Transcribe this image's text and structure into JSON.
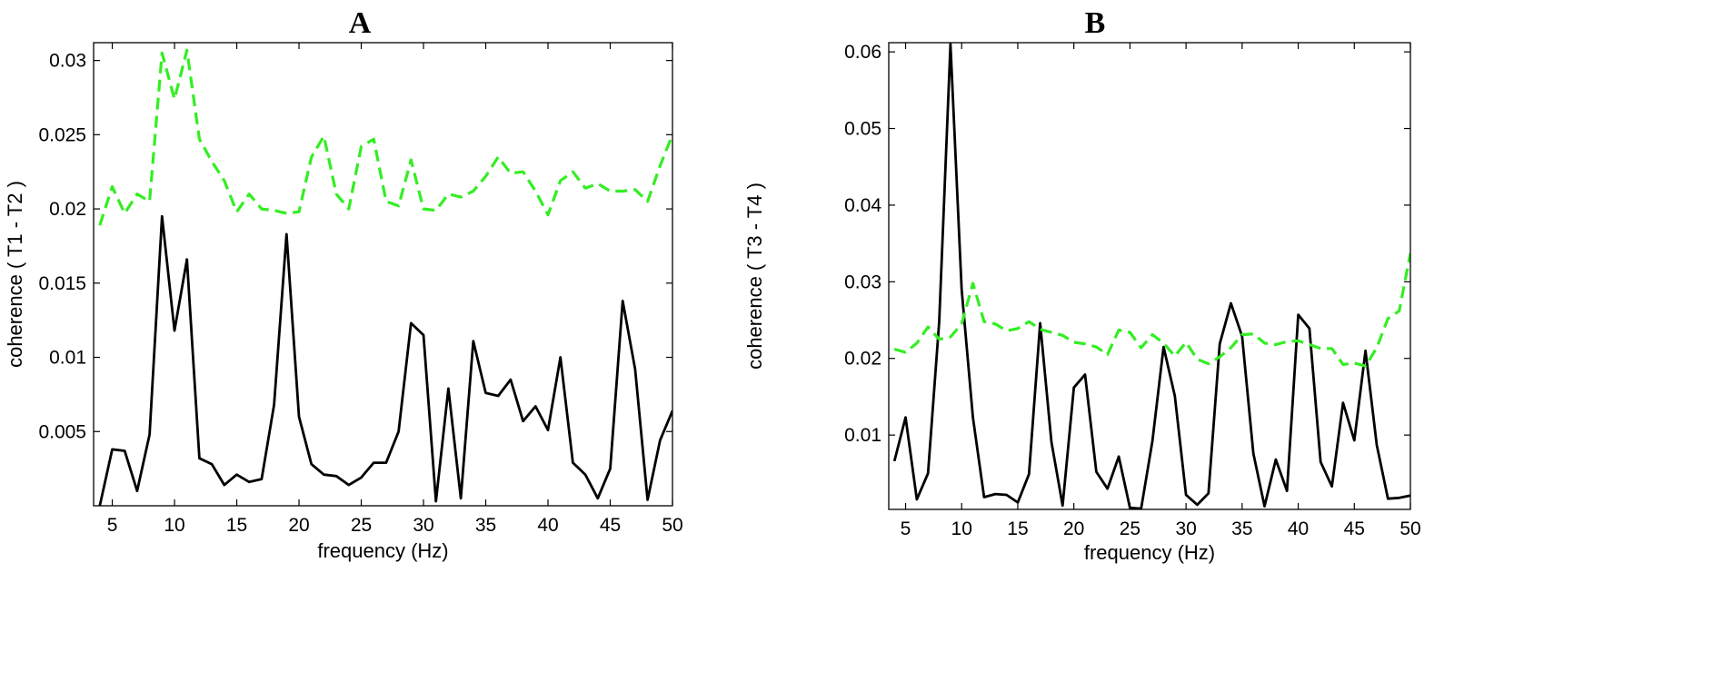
{
  "chart_data": [
    {
      "type": "line",
      "panel_label": "A",
      "xlabel": "frequency (Hz)",
      "ylabel": "coherence ( T1 - T2 )",
      "xlim": [
        3.5,
        50
      ],
      "ylim": [
        0,
        0.0312
      ],
      "xticks": [
        5,
        10,
        15,
        20,
        25,
        30,
        35,
        40,
        45,
        50
      ],
      "xtick_labels": [
        "5",
        "10",
        "15",
        "20",
        "25",
        "30",
        "35",
        "40",
        "45",
        "50"
      ],
      "yticks": [
        0.005,
        0.01,
        0.015,
        0.02,
        0.025,
        0.03
      ],
      "ytick_labels": [
        "0.005",
        "0.01",
        "0.015",
        "0.02",
        "0.025",
        "0.03"
      ],
      "grid": false,
      "x": [
        4,
        5,
        6,
        7,
        8,
        9,
        10,
        11,
        12,
        13,
        14,
        15,
        16,
        17,
        18,
        19,
        20,
        21,
        22,
        23,
        24,
        25,
        26,
        27,
        28,
        29,
        30,
        31,
        32,
        33,
        34,
        35,
        36,
        37,
        38,
        39,
        40,
        41,
        42,
        43,
        44,
        45,
        46,
        47,
        48,
        49,
        50
      ],
      "series": [
        {
          "color": "#000000",
          "style": "solid",
          "values": [
            0.0,
            0.0038,
            0.0037,
            0.001,
            0.0048,
            0.0195,
            0.0118,
            0.0166,
            0.0032,
            0.0028,
            0.0014,
            0.0021,
            0.0016,
            0.0018,
            0.0068,
            0.0183,
            0.006,
            0.0028,
            0.0021,
            0.002,
            0.0014,
            0.0019,
            0.0029,
            0.0029,
            0.005,
            0.0123,
            0.0115,
            0.0003,
            0.0079,
            0.0005,
            0.0111,
            0.0076,
            0.0074,
            0.0085,
            0.0057,
            0.0067,
            0.0051,
            0.01,
            0.0029,
            0.0021,
            0.0005,
            0.0025,
            0.0138,
            0.0092,
            0.0004,
            0.0044,
            0.0064
          ]
        },
        {
          "color": "#33ee22",
          "style": "dashed",
          "values": [
            0.0189,
            0.0215,
            0.0197,
            0.021,
            0.0205,
            0.0305,
            0.0274,
            0.0307,
            0.0247,
            0.0232,
            0.0219,
            0.0198,
            0.021,
            0.02,
            0.0199,
            0.0197,
            0.0198,
            0.0235,
            0.0249,
            0.021,
            0.02,
            0.0242,
            0.0247,
            0.0205,
            0.0202,
            0.0233,
            0.02,
            0.0199,
            0.021,
            0.0208,
            0.0212,
            0.0222,
            0.0235,
            0.0224,
            0.0225,
            0.0212,
            0.0196,
            0.0219,
            0.0225,
            0.0214,
            0.0217,
            0.0212,
            0.0212,
            0.0213,
            0.0205,
            0.0229,
            0.025
          ]
        }
      ]
    },
    {
      "type": "line",
      "panel_label": "B",
      "xlabel": "frequency (Hz)",
      "ylabel": "coherence ( T3 - T4 )",
      "xlim": [
        3.5,
        50
      ],
      "ylim": [
        0.0003,
        0.0612
      ],
      "xticks": [
        5,
        10,
        15,
        20,
        25,
        30,
        35,
        40,
        45,
        50
      ],
      "xtick_labels": [
        "5",
        "10",
        "15",
        "20",
        "25",
        "30",
        "35",
        "40",
        "45",
        "50"
      ],
      "yticks": [
        0.01,
        0.02,
        0.03,
        0.04,
        0.05,
        0.06
      ],
      "ytick_labels": [
        "0.01",
        "0.02",
        "0.03",
        "0.04",
        "0.05",
        "0.06"
      ],
      "grid": false,
      "x": [
        4,
        5,
        6,
        7,
        8,
        9,
        10,
        11,
        12,
        13,
        14,
        15,
        16,
        17,
        18,
        19,
        20,
        21,
        22,
        23,
        24,
        25,
        26,
        27,
        28,
        29,
        30,
        31,
        32,
        33,
        34,
        35,
        36,
        37,
        38,
        39,
        40,
        41,
        42,
        43,
        44,
        45,
        46,
        47,
        48,
        49,
        50
      ],
      "series": [
        {
          "color": "#000000",
          "style": "solid",
          "values": [
            0.0066,
            0.0123,
            0.0016,
            0.005,
            0.0248,
            0.061,
            0.029,
            0.0123,
            0.0019,
            0.0023,
            0.0022,
            0.0012,
            0.0049,
            0.0246,
            0.0091,
            0.0008,
            0.0162,
            0.0179,
            0.0052,
            0.003,
            0.0072,
            0.0005,
            0.0004,
            0.0092,
            0.0215,
            0.0151,
            0.0022,
            0.0009,
            0.0024,
            0.0219,
            0.0272,
            0.0229,
            0.0076,
            0.0007,
            0.0068,
            0.0027,
            0.0257,
            0.0239,
            0.0065,
            0.0033,
            0.0142,
            0.0093,
            0.021,
            0.0087,
            0.0017,
            0.0018,
            0.0021
          ]
        },
        {
          "color": "#33ee22",
          "style": "dashed",
          "values": [
            0.0212,
            0.0208,
            0.022,
            0.0241,
            0.0225,
            0.0228,
            0.0245,
            0.0298,
            0.0248,
            0.0245,
            0.0236,
            0.0239,
            0.0248,
            0.0238,
            0.0234,
            0.023,
            0.0221,
            0.0219,
            0.0215,
            0.0205,
            0.0237,
            0.0234,
            0.0214,
            0.0231,
            0.022,
            0.0203,
            0.0221,
            0.0199,
            0.0193,
            0.0202,
            0.0214,
            0.0231,
            0.0232,
            0.022,
            0.0218,
            0.0222,
            0.0223,
            0.0218,
            0.0213,
            0.0213,
            0.0192,
            0.0194,
            0.019,
            0.0214,
            0.0252,
            0.0262,
            0.0337
          ]
        }
      ]
    }
  ]
}
